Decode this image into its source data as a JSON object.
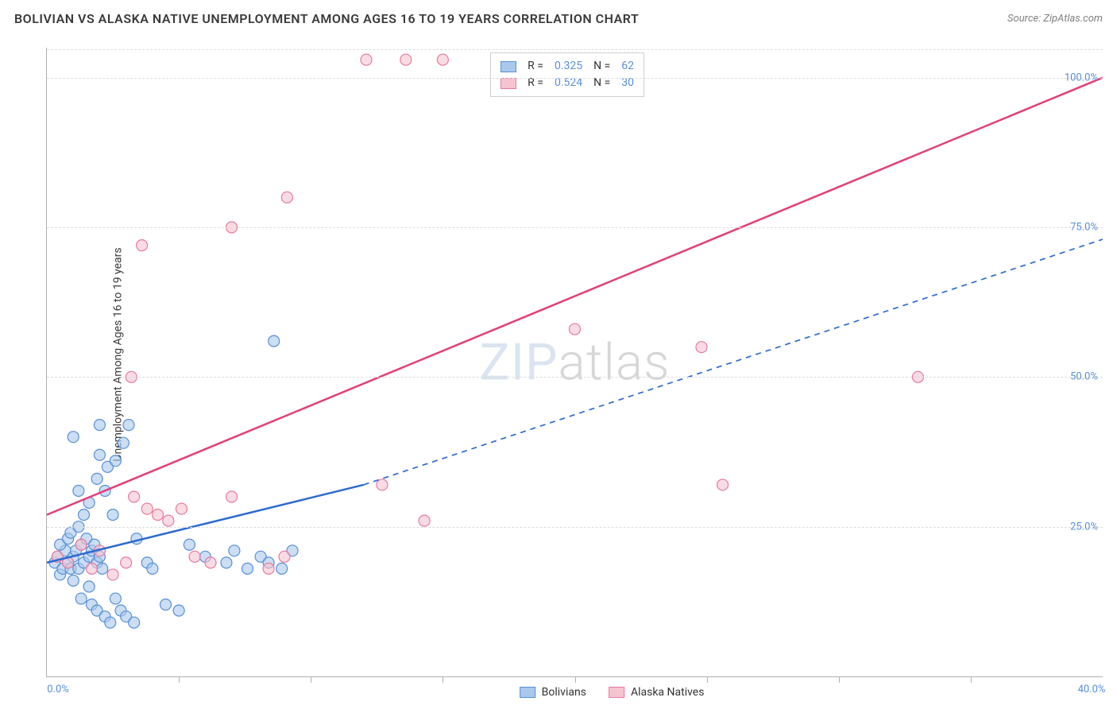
{
  "header": {
    "title": "BOLIVIAN VS ALASKA NATIVE UNEMPLOYMENT AMONG AGES 16 TO 19 YEARS CORRELATION CHART",
    "source": "Source: ZipAtlas.com"
  },
  "chart": {
    "type": "scatter",
    "x_axis": {
      "min": 0,
      "max": 40,
      "ticks": [
        0,
        40
      ],
      "tick_labels": [
        "0.0%",
        "40.0%"
      ],
      "minor_ticks": [
        5,
        10,
        15,
        20,
        25,
        30,
        35
      ],
      "label_color": "#5a8fd6"
    },
    "y_axis": {
      "min": 0,
      "max": 105,
      "ticks": [
        25,
        50,
        75,
        100
      ],
      "tick_labels": [
        "25.0%",
        "50.0%",
        "75.0%",
        "100.0%"
      ],
      "label": "Unemployment Among Ages 16 to 19 years",
      "label_color": "#5a8fd6"
    },
    "grid_color": "#dcdcdc",
    "axis_color": "#b0b0b0",
    "background_color": "#ffffff",
    "watermark": {
      "part1": "ZIP",
      "part2": "atlas"
    },
    "series": [
      {
        "name": "Bolivians",
        "marker_fill": "#a9c8ec",
        "marker_stroke": "#5a8fd6",
        "marker_r": 7,
        "marker_opacity": 0.6,
        "trend": {
          "solid_from": [
            0,
            19
          ],
          "solid_to": [
            12,
            32
          ],
          "dashed_from": [
            12,
            32
          ],
          "dashed_to": [
            40,
            73
          ],
          "stroke": "#2e6bd1",
          "width": 2.5
        },
        "stats": {
          "R": "0.325",
          "N": "62"
        },
        "points": [
          [
            0.3,
            19
          ],
          [
            0.5,
            17
          ],
          [
            0.4,
            20
          ],
          [
            0.6,
            18
          ],
          [
            0.8,
            19
          ],
          [
            0.7,
            21
          ],
          [
            0.9,
            18
          ],
          [
            1.0,
            20
          ],
          [
            0.5,
            22
          ],
          [
            0.8,
            23
          ],
          [
            1.2,
            18
          ],
          [
            1.1,
            21
          ],
          [
            1.4,
            19
          ],
          [
            1.3,
            22
          ],
          [
            1.6,
            20
          ],
          [
            1.0,
            16
          ],
          [
            0.9,
            24
          ],
          [
            1.2,
            25
          ],
          [
            1.5,
            23
          ],
          [
            1.7,
            21
          ],
          [
            1.9,
            19
          ],
          [
            1.8,
            22
          ],
          [
            2.0,
            20
          ],
          [
            2.1,
            18
          ],
          [
            1.6,
            15
          ],
          [
            1.3,
            13
          ],
          [
            1.7,
            12
          ],
          [
            1.9,
            11
          ],
          [
            2.2,
            10
          ],
          [
            2.4,
            9
          ],
          [
            1.4,
            27
          ],
          [
            1.6,
            29
          ],
          [
            1.2,
            31
          ],
          [
            1.9,
            33
          ],
          [
            2.3,
            35
          ],
          [
            2.0,
            37
          ],
          [
            2.6,
            36
          ],
          [
            2.9,
            39
          ],
          [
            3.1,
            42
          ],
          [
            3.4,
            23
          ],
          [
            3.8,
            19
          ],
          [
            4.0,
            18
          ],
          [
            4.5,
            12
          ],
          [
            5.0,
            11
          ],
          [
            5.4,
            22
          ],
          [
            6.0,
            20
          ],
          [
            6.8,
            19
          ],
          [
            7.1,
            21
          ],
          [
            7.6,
            18
          ],
          [
            8.1,
            20
          ],
          [
            8.4,
            19
          ],
          [
            8.9,
            18
          ],
          [
            9.3,
            21
          ],
          [
            2.6,
            13
          ],
          [
            2.8,
            11
          ],
          [
            3.0,
            10
          ],
          [
            3.3,
            9
          ],
          [
            2.2,
            31
          ],
          [
            2.5,
            27
          ],
          [
            1.0,
            40
          ],
          [
            2.0,
            42
          ],
          [
            8.6,
            56
          ]
        ]
      },
      {
        "name": "Alaska Natives",
        "marker_fill": "#f5c4d1",
        "marker_stroke": "#e77aa0",
        "marker_r": 7,
        "marker_opacity": 0.6,
        "trend": {
          "solid_from": [
            0,
            27
          ],
          "solid_to": [
            40,
            100
          ],
          "stroke": "#e23f78",
          "width": 2.5
        },
        "stats": {
          "R": "0.524",
          "N": "30"
        },
        "points": [
          [
            0.4,
            20
          ],
          [
            0.8,
            19
          ],
          [
            1.3,
            22
          ],
          [
            1.7,
            18
          ],
          [
            2.0,
            21
          ],
          [
            2.5,
            17
          ],
          [
            3.0,
            19
          ],
          [
            3.3,
            30
          ],
          [
            3.8,
            28
          ],
          [
            4.2,
            27
          ],
          [
            4.6,
            26
          ],
          [
            5.1,
            28
          ],
          [
            5.6,
            20
          ],
          [
            6.2,
            19
          ],
          [
            7.0,
            30
          ],
          [
            8.4,
            18
          ],
          [
            9.0,
            20
          ],
          [
            3.2,
            50
          ],
          [
            3.6,
            72
          ],
          [
            7.0,
            75
          ],
          [
            9.1,
            80
          ],
          [
            12.1,
            103
          ],
          [
            13.6,
            103
          ],
          [
            15.0,
            103
          ],
          [
            14.3,
            26
          ],
          [
            12.7,
            32
          ],
          [
            20.0,
            58
          ],
          [
            24.8,
            55
          ],
          [
            25.6,
            32
          ],
          [
            33.0,
            50
          ]
        ]
      }
    ],
    "stats_box": {
      "position": "top-center",
      "rows": [
        {
          "swatch_fill": "#a9c8ec",
          "swatch_stroke": "#5a8fd6",
          "r_label": "R =",
          "r_val": "0.325",
          "n_label": "N =",
          "n_val": "62"
        },
        {
          "swatch_fill": "#f5c4d1",
          "swatch_stroke": "#e77aa0",
          "r_label": "R =",
          "r_val": "0.524",
          "n_label": "N =",
          "n_val": "30"
        }
      ],
      "value_color": "#5a8fd6",
      "label_color": "#333333"
    },
    "bottom_legend": {
      "items": [
        {
          "swatch_fill": "#a9c8ec",
          "swatch_stroke": "#5a8fd6",
          "label": "Bolivians"
        },
        {
          "swatch_fill": "#f5c4d1",
          "swatch_stroke": "#e77aa0",
          "label": "Alaska Natives"
        }
      ]
    }
  }
}
